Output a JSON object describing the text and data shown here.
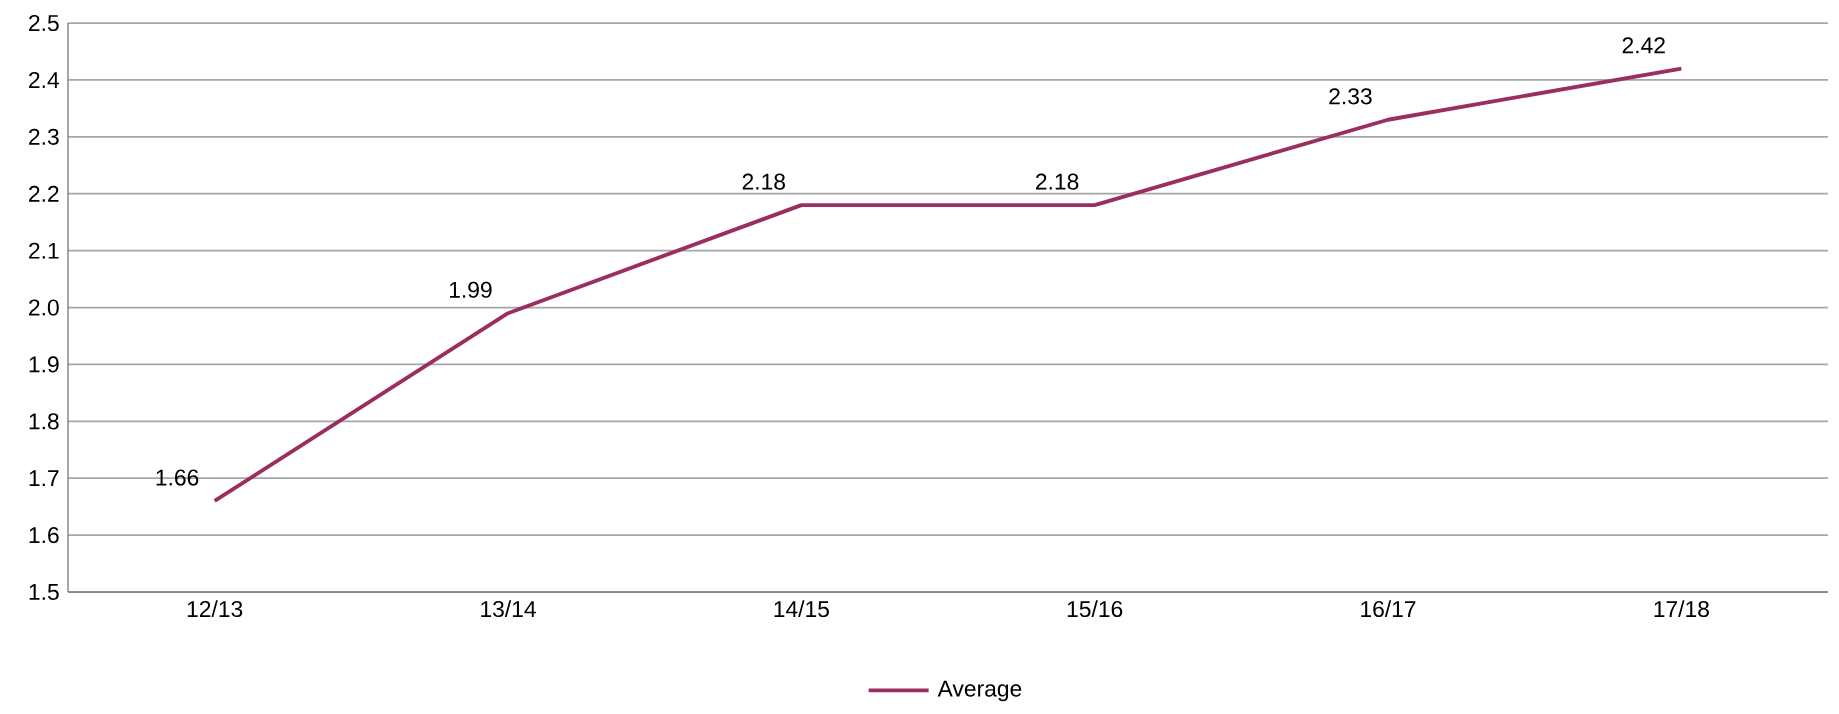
{
  "chart_data": {
    "type": "line",
    "categories": [
      "12/13",
      "13/14",
      "14/15",
      "15/16",
      "16/17",
      "17/18"
    ],
    "series": [
      {
        "name": "Average",
        "color": "#9b2d5f",
        "values": [
          1.66,
          1.99,
          2.18,
          2.18,
          2.33,
          2.42
        ]
      }
    ],
    "ylim": [
      1.5,
      2.5
    ],
    "yticks": [
      1.5,
      1.6,
      1.7,
      1.8,
      1.9,
      {
        "value": 2,
        "label": "2.0"
      },
      2.1,
      2.2,
      2.3,
      2.4,
      2.5
    ],
    "grid": "y",
    "legend": "bottom",
    "data_labels": true
  }
}
